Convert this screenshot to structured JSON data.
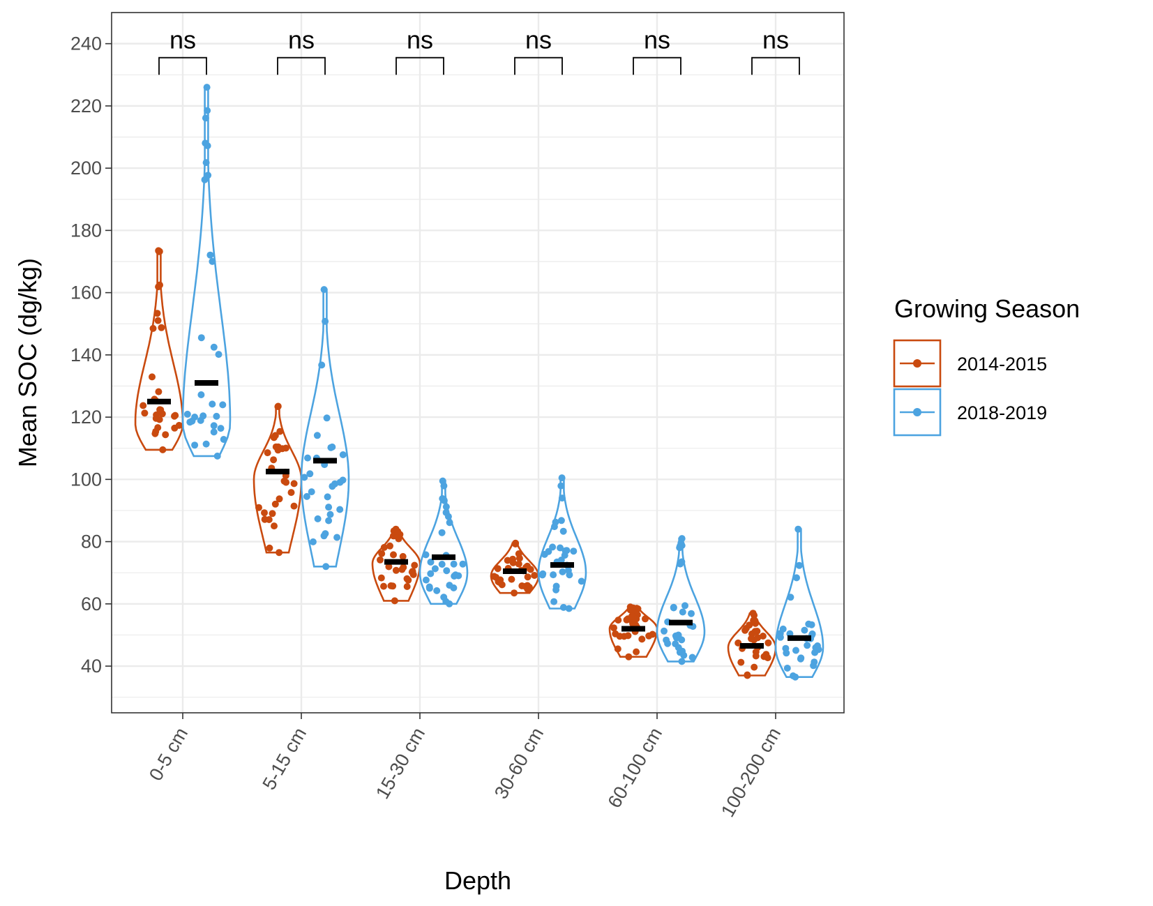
{
  "chart_data": {
    "type": "violin",
    "xlabel": "Depth",
    "ylabel": "Mean SOC (dg/kg)",
    "ylim": [
      25,
      250
    ],
    "y_ticks": [
      40,
      60,
      80,
      100,
      120,
      140,
      160,
      180,
      200,
      220,
      240
    ],
    "categories": [
      "0-5 cm",
      "5-15 cm",
      "15-30 cm",
      "30-60 cm",
      "60-100 cm",
      "100-200 cm"
    ],
    "grid": "on",
    "legend": {
      "title": "Growing Season",
      "position": "right",
      "entries": [
        "2014-2015",
        "2018-2019"
      ]
    },
    "significance": [
      "ns",
      "ns",
      "ns",
      "ns",
      "ns",
      "ns"
    ],
    "series": [
      {
        "name": "2014-2015",
        "color": "#C94A0F",
        "means": [
          125,
          102.5,
          73.5,
          70.5,
          52,
          46.5
        ],
        "min": [
          109.5,
          76.5,
          61,
          63.5,
          43,
          37
        ],
        "max": [
          173.5,
          123.5,
          84,
          79.5,
          59,
          57
        ],
        "mode": [
          118,
          100,
          73,
          69,
          52,
          46
        ]
      },
      {
        "name": "2018-2019",
        "color": "#4CA3E0",
        "means": [
          131,
          106,
          75,
          72.5,
          54,
          49
        ],
        "min": [
          107.5,
          72,
          60,
          58.5,
          41.5,
          36.5
        ],
        "max": [
          226,
          161,
          99.5,
          100.5,
          81,
          84
        ],
        "mode": [
          118,
          100,
          70,
          70,
          51,
          46
        ]
      }
    ]
  }
}
